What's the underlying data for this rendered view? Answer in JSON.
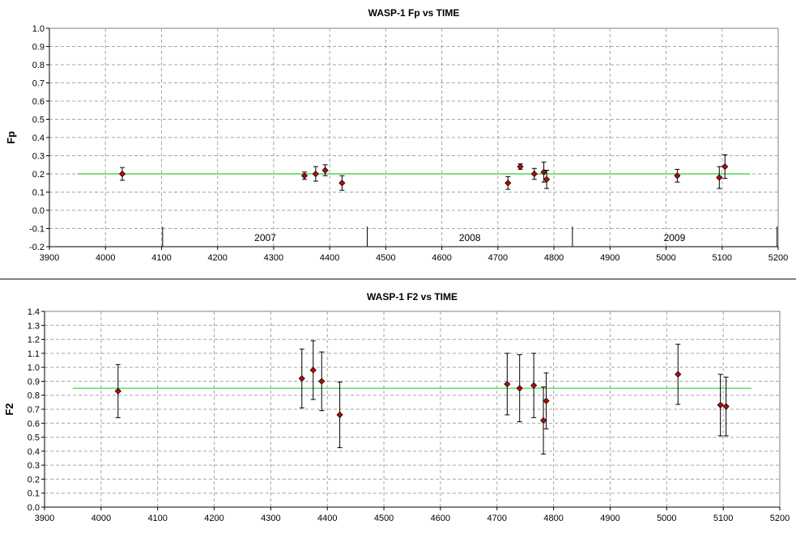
{
  "chart_data": [
    {
      "type": "scatter",
      "title": "WASP-1 Fp vs TIME",
      "xlabel": "",
      "ylabel": "Fp",
      "xlim": [
        3900,
        5200
      ],
      "ylim": [
        -0.2,
        1.0
      ],
      "xticks": [
        3900,
        4000,
        4100,
        4200,
        4300,
        4400,
        4500,
        4600,
        4700,
        4800,
        4900,
        5000,
        5100,
        5200
      ],
      "xtick_labels": [
        "3900",
        "4000",
        "4100",
        "4200",
        "4300",
        "4400",
        "4500",
        "4600",
        "4700",
        "4800",
        "4900",
        "5000",
        "5100",
        "5200"
      ],
      "yticks": [
        -0.2,
        -0.1,
        0.0,
        0.1,
        0.2,
        0.3,
        0.4,
        0.5,
        0.6,
        0.7,
        0.8,
        0.9,
        1.0
      ],
      "ytick_labels": [
        "-0.2",
        "-0.1",
        "0.0",
        "0.1",
        "0.2",
        "0.3",
        "0.4",
        "0.5",
        "0.6",
        "0.7",
        "0.8",
        "0.9",
        "1.0"
      ],
      "grid": true,
      "reference_line": {
        "y": 0.2,
        "x_from": 3950,
        "x_to": 5150,
        "color": "#33cc33"
      },
      "year_markers": [
        {
          "x": 4102
        },
        {
          "x": 4467
        },
        {
          "x": 4833
        },
        {
          "x": 5198
        }
      ],
      "year_labels": [
        {
          "label": "2007",
          "x": 4285
        },
        {
          "label": "2008",
          "x": 4650
        },
        {
          "label": "2009",
          "x": 5015
        }
      ],
      "series": [
        {
          "color": "#cc0000",
          "points": [
            {
              "x": 4030,
              "y": 0.2,
              "err": 0.035
            },
            {
              "x": 4355,
              "y": 0.19,
              "err": 0.02
            },
            {
              "x": 4375,
              "y": 0.2,
              "err": 0.04
            },
            {
              "x": 4392,
              "y": 0.22,
              "err": 0.03
            },
            {
              "x": 4422,
              "y": 0.15,
              "err": 0.04
            },
            {
              "x": 4718,
              "y": 0.15,
              "err": 0.035
            },
            {
              "x": 4740,
              "y": 0.24,
              "err": 0.015
            },
            {
              "x": 4765,
              "y": 0.2,
              "err": 0.03
            },
            {
              "x": 4782,
              "y": 0.21,
              "err": 0.055
            },
            {
              "x": 4787,
              "y": 0.17,
              "err": 0.05
            },
            {
              "x": 5020,
              "y": 0.19,
              "err": 0.035
            },
            {
              "x": 5095,
              "y": 0.18,
              "err": 0.06
            },
            {
              "x": 5105,
              "y": 0.24,
              "err": 0.065
            }
          ]
        }
      ]
    },
    {
      "type": "scatter",
      "title": "WASP-1 F2 vs TIME",
      "xlabel": "",
      "ylabel": "F2",
      "xlim": [
        3900,
        5200
      ],
      "ylim": [
        0.0,
        1.4
      ],
      "xticks": [
        3900,
        4000,
        4100,
        4200,
        4300,
        4400,
        4500,
        4600,
        4700,
        4800,
        4900,
        5000,
        5100,
        5200
      ],
      "xtick_labels": [
        "3900",
        "4000",
        "4100",
        "4200",
        "4300",
        "4400",
        "4500",
        "4600",
        "4700",
        "4800",
        "4900",
        "5000",
        "5100",
        "5200"
      ],
      "yticks": [
        0.0,
        0.1,
        0.2,
        0.3,
        0.4,
        0.5,
        0.6,
        0.7,
        0.8,
        0.9,
        1.0,
        1.1,
        1.2,
        1.3,
        1.4
      ],
      "ytick_labels": [
        "0.0",
        "0.1",
        "0.2",
        "0.3",
        "0.4",
        "0.5",
        "0.6",
        "0.7",
        "0.8",
        "0.9",
        "1.0",
        "1.1",
        "1.2",
        "1.3",
        "1.4"
      ],
      "grid": true,
      "reference_line": {
        "y": 0.85,
        "x_from": 3950,
        "x_to": 5150,
        "color": "#33cc33"
      },
      "year_markers": [],
      "year_labels": [],
      "series": [
        {
          "color": "#cc0000",
          "points": [
            {
              "x": 4030,
              "y": 0.83,
              "err": 0.19
            },
            {
              "x": 4355,
              "y": 0.92,
              "err": 0.21
            },
            {
              "x": 4375,
              "y": 0.98,
              "err": 0.21
            },
            {
              "x": 4390,
              "y": 0.9,
              "err": 0.21
            },
            {
              "x": 4422,
              "y": 0.66,
              "err": 0.235
            },
            {
              "x": 4718,
              "y": 0.88,
              "err": 0.22
            },
            {
              "x": 4740,
              "y": 0.85,
              "err": 0.24
            },
            {
              "x": 4765,
              "y": 0.87,
              "err": 0.23
            },
            {
              "x": 4782,
              "y": 0.62,
              "err": 0.24
            },
            {
              "x": 4787,
              "y": 0.76,
              "err": 0.2
            },
            {
              "x": 5020,
              "y": 0.95,
              "err": 0.215
            },
            {
              "x": 5095,
              "y": 0.73,
              "err": 0.22
            },
            {
              "x": 5105,
              "y": 0.72,
              "err": 0.21
            }
          ]
        }
      ]
    }
  ]
}
